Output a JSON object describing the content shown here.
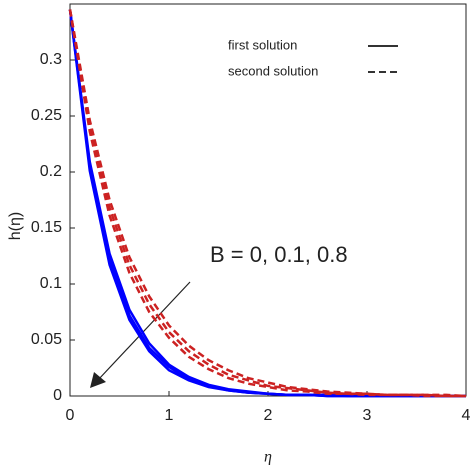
{
  "chart_data": {
    "type": "line",
    "ylabel": "h(η)",
    "xlabel": "η",
    "annotation": "B = 0, 0.1, 0.8",
    "x": [
      0,
      0.2,
      0.4,
      0.6,
      0.8,
      1,
      1.2,
      1.4,
      1.6,
      1.8,
      2,
      2.2,
      2.4,
      2.6,
      2.8,
      3,
      3.2,
      3.4,
      3.6,
      3.8,
      4
    ],
    "series": [
      {
        "name": "first solution",
        "color": "#0000ff",
        "dashed": false,
        "curves": [
          {
            "values": [
              0.345,
              0.209,
              0.127,
              0.077,
              0.047,
              0.028,
              0.017,
              0.01,
              0.006,
              0.004,
              0.002,
              0.001,
              0.001,
              0.001,
              0,
              0,
              0,
              0,
              0,
              0,
              0
            ]
          },
          {
            "values": [
              0.345,
              0.205,
              0.122,
              0.072,
              0.043,
              0.026,
              0.015,
              0.009,
              0.005,
              0.003,
              0.002,
              0.001,
              0.001,
              0,
              0,
              0,
              0,
              0,
              0,
              0,
              0
            ]
          },
          {
            "values": [
              0.345,
              0.201,
              0.117,
              0.068,
              0.04,
              0.023,
              0.014,
              0.008,
              0.005,
              0.003,
              0.002,
              0.001,
              0.001,
              0,
              0,
              0,
              0,
              0,
              0,
              0,
              0
            ]
          }
        ]
      },
      {
        "name": "second solution",
        "color": "#cc2222",
        "dashed": true,
        "curves": [
          {
            "values": [
              0.345,
              0.246,
              0.175,
              0.124,
              0.089,
              0.063,
              0.045,
              0.032,
              0.023,
              0.016,
              0.012,
              0.008,
              0.006,
              0.004,
              0.003,
              0.002,
              0.001,
              0.001,
              0.001,
              0.001,
              0
            ]
          },
          {
            "values": [
              0.345,
              0.241,
              0.168,
              0.117,
              0.082,
              0.057,
              0.04,
              0.028,
              0.019,
              0.014,
              0.009,
              0.007,
              0.005,
              0.003,
              0.002,
              0.002,
              0.001,
              0.001,
              0.001,
              0,
              0
            ]
          },
          {
            "values": [
              0.345,
              0.236,
              0.161,
              0.11,
              0.075,
              0.052,
              0.035,
              0.024,
              0.016,
              0.011,
              0.008,
              0.005,
              0.004,
              0.002,
              0.002,
              0.001,
              0.001,
              0.001,
              0,
              0,
              0
            ]
          }
        ]
      }
    ],
    "xlim": [
      0,
      4
    ],
    "xticks": [
      0,
      1,
      2,
      3,
      4
    ],
    "ylim": [
      0,
      0.35
    ],
    "yticks": [
      0,
      0.05,
      0.1,
      0.15,
      0.2,
      0.25,
      0.3
    ]
  }
}
